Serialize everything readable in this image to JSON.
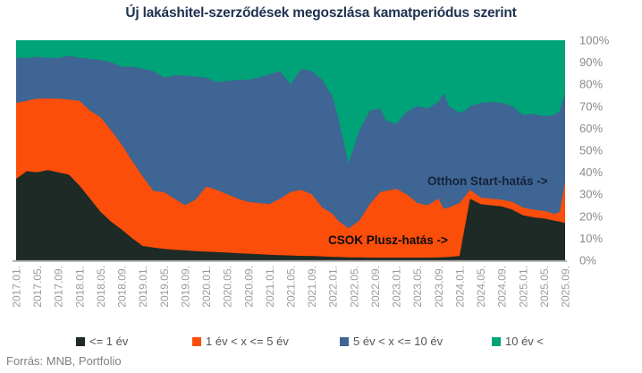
{
  "title": "Új lakáshitel-szerződések megoszlása kamatperiódus szerint",
  "source": "Forrás: MNB, Portfolio",
  "colors": {
    "title_text": "#1f3150",
    "axis_line": "#adadad",
    "y_tick_text": "#8a8a8a",
    "x_tick_text": "#9b9b9b",
    "legend_text": "#555555",
    "source_text": "#808080",
    "black_series": "#1e2a25",
    "orange_series": "#fb4e0a",
    "blue_series": "#3e6593",
    "green_series": "#00a278"
  },
  "chart_data": {
    "type": "area",
    "stacked": "percent",
    "title": "Új lakáshitel-szerződések megoszlása kamatperiódus szerint",
    "xlabel": "",
    "ylabel": "",
    "ylim": [
      0,
      100
    ],
    "grid": false,
    "legend_position": "bottom",
    "y_tick_labels": [
      "100%",
      "90%",
      "80%",
      "70%",
      "60%",
      "50%",
      "40%",
      "30%",
      "20%",
      "10%",
      "0%"
    ],
    "x_tick_labels": [
      "2017.01.",
      "2017.05.",
      "2017.09.",
      "2018.01.",
      "2018.05.",
      "2018.09.",
      "2019.01.",
      "2019.05.",
      "2019.09.",
      "2020.01.",
      "2020.05.",
      "2020.09.",
      "2021.01.",
      "2021.05.",
      "2021.09.",
      "2022.01.",
      "2022.05.",
      "2022.09.",
      "2023.01.",
      "2023.05.",
      "2023.09.",
      "2024.01.",
      "2024.05.",
      "2024.09.",
      "2025.01.",
      "2025.05.",
      "2025.09."
    ],
    "x_tick_month_step": 4,
    "x_labels": [
      "2017.01",
      "2017.03",
      "2017.05",
      "2017.07",
      "2017.09",
      "2017.11",
      "2018.01",
      "2018.03",
      "2018.05",
      "2018.07",
      "2018.09",
      "2018.11",
      "2019.01",
      "2019.03",
      "2019.05",
      "2019.07",
      "2019.09",
      "2019.11",
      "2020.01",
      "2020.03",
      "2020.05",
      "2020.07",
      "2020.09",
      "2020.11",
      "2021.01",
      "2021.03",
      "2021.05",
      "2021.07",
      "2021.09",
      "2021.11",
      "2022.01",
      "2022.02",
      "2022.04",
      "2022.06",
      "2022.08",
      "2022.10",
      "2022.11",
      "2023.01",
      "2023.03",
      "2023.05",
      "2023.07",
      "2023.09",
      "2023.10",
      "2023.11",
      "2024.01",
      "2024.02",
      "2024.03",
      "2024.05",
      "2024.07",
      "2024.09",
      "2024.11",
      "2025.01",
      "2025.03",
      "2025.05",
      "2025.07",
      "2025.08",
      "2025.09"
    ],
    "x_months": [
      0,
      2,
      4,
      6,
      8,
      10,
      12,
      14,
      16,
      18,
      20,
      22,
      24,
      26,
      28,
      30,
      32,
      34,
      36,
      38,
      40,
      42,
      44,
      46,
      48,
      50,
      52,
      54,
      56,
      58,
      60,
      61,
      63,
      65,
      67,
      69,
      70,
      72,
      74,
      76,
      78,
      80,
      81,
      82,
      84,
      85,
      86,
      88,
      90,
      92,
      94,
      96,
      98,
      100,
      102,
      103,
      104
    ],
    "series": [
      {
        "name": "<= 1 év",
        "color": "#1e2a25",
        "values": [
          37,
          40.5,
          40,
          41,
          40,
          39,
          34,
          28,
          22,
          17.5,
          14,
          10,
          6.5,
          5.8,
          5.2,
          4.8,
          4.5,
          4.2,
          4,
          3.8,
          3.5,
          3.2,
          3,
          2.8,
          2.5,
          2.3,
          2.2,
          2,
          2,
          1.8,
          1.5,
          1.5,
          1.3,
          1.3,
          1.2,
          1.2,
          1.2,
          1.2,
          1.2,
          1.2,
          1.2,
          1.3,
          1.4,
          1.5,
          2,
          15,
          28,
          25.5,
          25,
          24.5,
          23,
          20.5,
          19.5,
          19,
          18,
          17.5,
          17
        ]
      },
      {
        "name": "1 év < x <= 5 év",
        "color": "#fb4e0a",
        "values": [
          34.5,
          32,
          33.5,
          32.5,
          33.5,
          34,
          38.5,
          40,
          43,
          41.5,
          38.5,
          35,
          31.5,
          25.7,
          25.8,
          23.2,
          20.5,
          23.3,
          29.5,
          28.2,
          26.5,
          24.8,
          23.5,
          23.2,
          23,
          25.7,
          28.8,
          30,
          28,
          22.2,
          19.5,
          16.5,
          13.2,
          16.7,
          24.3,
          29.8,
          30.3,
          31.3,
          28.8,
          24.8,
          23.8,
          26.7,
          22.1,
          22.5,
          24,
          14,
          4,
          3,
          3,
          3,
          3.5,
          3.5,
          3.5,
          3.5,
          3,
          4.5,
          19
        ]
      },
      {
        "name": "5 év < x <= 10 év",
        "color": "#3e6593",
        "values": [
          20.5,
          19.5,
          19,
          18.5,
          18.5,
          20,
          19.5,
          23.5,
          26,
          31,
          35.5,
          43,
          49,
          54.5,
          52,
          56,
          59,
          56,
          49.5,
          49,
          51.5,
          54,
          55.5,
          57,
          59,
          58,
          49,
          55,
          56,
          58,
          53,
          47,
          29.5,
          41,
          42.5,
          38,
          32,
          29.5,
          37.5,
          44,
          44,
          44,
          52.5,
          46,
          41,
          39,
          38,
          43,
          44,
          44,
          43.5,
          42,
          43.5,
          43,
          45,
          46,
          40
        ]
      },
      {
        "name": "10 év <",
        "color": "#00a278",
        "values": [
          8,
          8,
          7.5,
          8,
          8,
          7,
          8,
          8.5,
          9,
          10,
          12,
          12,
          13,
          14,
          17,
          16,
          16,
          16.5,
          17,
          19,
          18.5,
          18,
          18,
          17,
          15.5,
          14,
          20,
          13,
          14,
          18,
          26,
          35,
          56,
          41,
          32,
          31,
          36.5,
          38,
          32.5,
          30,
          31,
          28,
          24,
          30,
          33,
          32,
          30,
          28.5,
          28,
          28.5,
          30,
          34,
          33.5,
          34.5,
          34,
          32,
          24
        ]
      }
    ],
    "annotations": [
      {
        "text": "Otthon Start-hatás ->",
        "x": "2024.06",
        "y": 38
      },
      {
        "text": "CSOK Plusz-hatás ->",
        "x": "2023.02",
        "y": 10
      }
    ]
  }
}
